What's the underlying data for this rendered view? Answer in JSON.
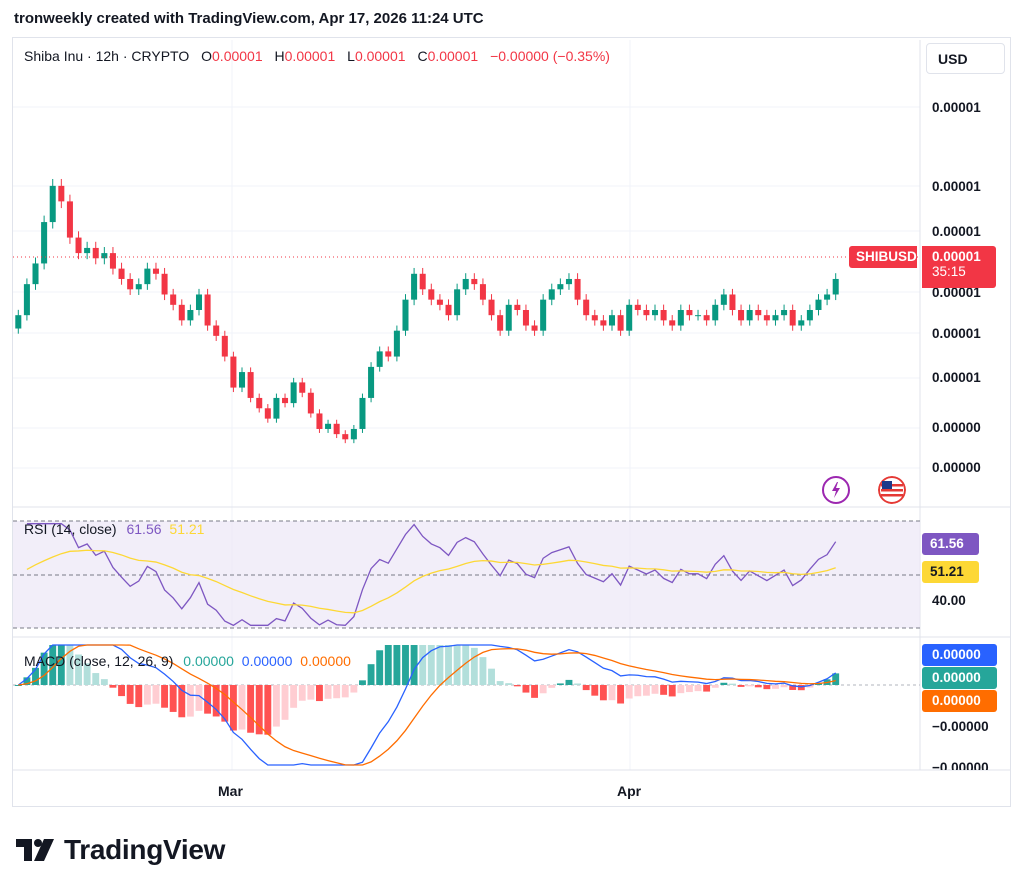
{
  "caption": "tronweekly created with TradingView.com, Apr 17, 2026 11:24 UTC",
  "currency_button": "USD",
  "legend": {
    "symbol": "Shiba Inu · 12h · CRYPTO",
    "o_label": "O",
    "o": "0.00001",
    "h_label": "H",
    "h": "0.00001",
    "l_label": "L",
    "l": "0.00001",
    "c_label": "C",
    "c": "0.00001",
    "change": "−0.00000 (−0.35%)"
  },
  "price_axis": [
    "0.00001",
    "0.00001",
    "0.00001",
    "0.00001",
    "0.00001",
    "0.00001",
    "0.00000",
    "0.00000"
  ],
  "price_tag": {
    "symbol": "SHIBUSD",
    "price": "0.00001",
    "countdown": "35:15"
  },
  "rsi": {
    "title": "RSI (14, close)",
    "rsi_value": "61.56",
    "ma_value": "51.21",
    "axis_label": "40.00",
    "tag_rsi": "61.56",
    "tag_ma": "51.21"
  },
  "macd": {
    "title": "MACD (close, 12, 26, 9)",
    "macd_value": "0.00000",
    "signal_value": "0.00000",
    "hist_value": "0.00000",
    "axis_labels": [
      "0.00000",
      "−0.00000",
      "−0.00000"
    ],
    "tag_macd": "0.00000",
    "tag_hist": "0.00000",
    "tag_signal": "0.00000"
  },
  "x_axis": [
    "Mar",
    "Apr"
  ],
  "logo_text": "TradingView",
  "icons": {
    "lightning": "lightning-icon",
    "flag": "us-flag-icon"
  },
  "colors": {
    "up": "#089981",
    "down": "#f23645",
    "rsi": "#7e57c2",
    "rsi_ma": "#fdd835",
    "macd": "#2962ff",
    "signal": "#ff6d00",
    "hist_up_strong": "#26a69a",
    "hist_up_weak": "#b2dfdb",
    "hist_down_strong": "#ff5252",
    "hist_down_weak": "#ffcdd2"
  },
  "chart_data": [
    {
      "type": "candlestick",
      "title": "Shiba Inu · 12h · CRYPTO",
      "series": [
        {
          "name": "SHIBUSD",
          "closes": [
            8.6e-06,
            9.2e-06,
            9.6e-06,
            1.04e-05,
            1.11e-05,
            1.08e-05,
            1.01e-05,
            9.8e-06,
            9.9e-06,
            9.7e-06,
            9.8e-06,
            9.5e-06,
            9.3e-06,
            9.1e-06,
            9.2e-06,
            9.5e-06,
            9.4e-06,
            9e-06,
            8.8e-06,
            8.5e-06,
            8.7e-06,
            9e-06,
            8.4e-06,
            8.2e-06,
            7.8e-06,
            7.2e-06,
            7.5e-06,
            7e-06,
            6.8e-06,
            6.6e-06,
            7e-06,
            6.9e-06,
            7.3e-06,
            7.1e-06,
            6.7e-06,
            6.4e-06,
            6.5e-06,
            6.3e-06,
            6.2e-06,
            6.4e-06,
            7e-06,
            7.6e-06,
            7.9e-06,
            7.8e-06,
            8.3e-06,
            8.9e-06,
            9.4e-06,
            9.1e-06,
            8.9e-06,
            8.8e-06,
            8.6e-06,
            9.1e-06,
            9.3e-06,
            9.2e-06,
            8.9e-06,
            8.6e-06,
            8.3e-06,
            8.8e-06,
            8.7e-06,
            8.4e-06,
            8.3e-06,
            8.9e-06,
            9.1e-06,
            9.2e-06,
            9.3e-06,
            8.9e-06,
            8.6e-06,
            8.5e-06,
            8.4e-06,
            8.6e-06,
            8.3e-06,
            8.8e-06,
            8.7e-06,
            8.6e-06,
            8.7e-06,
            8.5e-06,
            8.4e-06,
            8.7e-06,
            8.6e-06,
            8.6e-06,
            8.5e-06,
            8.8e-06,
            9e-06,
            8.7e-06,
            8.5e-06,
            8.7e-06,
            8.6e-06,
            8.5e-06,
            8.6e-06,
            8.7e-06,
            8.4e-06,
            8.5e-06,
            8.7e-06,
            8.9e-06,
            9e-06,
            9.3e-06
          ]
        }
      ],
      "x_ticks": [
        "Mar",
        "Apr"
      ],
      "last_price": "0.00001"
    },
    {
      "type": "line",
      "title": "RSI (14, close)",
      "series": [
        {
          "name": "RSI",
          "last": 61.56
        },
        {
          "name": "RSI MA",
          "last": 51.21
        }
      ],
      "y_ticks": [
        40.0
      ]
    },
    {
      "type": "bar",
      "title": "MACD (close, 12, 26, 9)",
      "series": [
        {
          "name": "MACD"
        },
        {
          "name": "Signal"
        },
        {
          "name": "Histogram"
        }
      ]
    }
  ]
}
